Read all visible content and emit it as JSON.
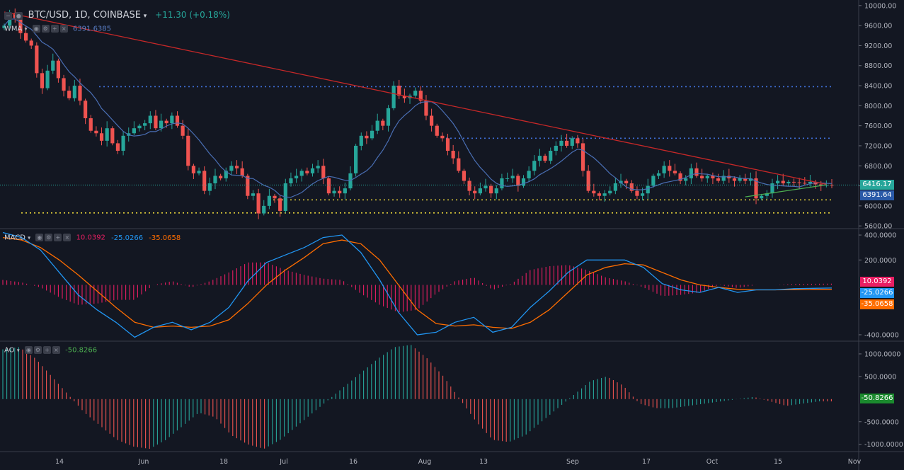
{
  "header": {
    "symbol": "BTC/USD, 1D, COINBASE",
    "change": "+11.30 (+0.18%)",
    "wma_label": "WMA",
    "wma_value": "6391.6385",
    "macd_label": "MACD",
    "macd_values": [
      "10.0392",
      "-25.0266",
      "-35.0658"
    ],
    "ao_label": "AO",
    "ao_value": "-50.8266"
  },
  "colors": {
    "background": "#131722",
    "up": "#26a69a",
    "down": "#ef5350",
    "ma": "#4a6fb5",
    "trend_down": "#c62828",
    "trend_up": "#4caf50",
    "blue_levels": "#3f6fd8",
    "yellow_levels": "#e6d23a",
    "macd_line": "#2196f3",
    "signal_line": "#ff6d00",
    "hist": "#e91e63",
    "ao_up": "#26a69a",
    "ao_down": "#ef5350"
  },
  "price_axis": {
    "ticks": [
      "10000.00",
      "9600.00",
      "9200.00",
      "8800.00",
      "8400.00",
      "8000.00",
      "7600.00",
      "7200.00",
      "6800.00",
      "6400.00",
      "6000.00",
      "5600.00"
    ],
    "ylim": [
      5560,
      10040
    ]
  },
  "macd_axis": {
    "ticks": [
      "400.0000",
      "200.0000",
      "-400.0000"
    ],
    "ylim": [
      -440,
      440
    ]
  },
  "ao_axis": {
    "ticks": [
      "1000.0000",
      "500.0000",
      "-500.0000",
      "-1000.0000"
    ],
    "ylim": [
      -1130,
      1250
    ]
  },
  "badges": {
    "price_current": "6416.17",
    "price_wma": "6391.64",
    "macd_hist": "10.0392",
    "macd_line": "-25.0266",
    "macd_signal": "-35.0658",
    "ao": "-50.8266"
  },
  "x_axis_labels": [
    "14",
    "Jun",
    "18",
    "Jul",
    "16",
    "Aug",
    "13",
    "Sep",
    "17",
    "Oct",
    "15",
    "Nov"
  ],
  "chart_data": [
    {
      "type": "candlestick",
      "title": "BTC/USD, 1D, COINBASE",
      "ylim": [
        5560,
        10040
      ],
      "close": [
        9600,
        9850,
        9750,
        9450,
        9300,
        9200,
        8650,
        8350,
        8700,
        8900,
        8550,
        8300,
        8150,
        8400,
        8100,
        7750,
        7500,
        7450,
        7300,
        7550,
        7250,
        7100,
        7400,
        7450,
        7550,
        7600,
        7650,
        7800,
        7550,
        7700,
        7650,
        7800,
        7600,
        7400,
        6800,
        6650,
        6700,
        6300,
        6450,
        6600,
        6550,
        6700,
        6800,
        6750,
        6600,
        6200,
        6250,
        5850,
        6000,
        6200,
        6150,
        5900,
        6450,
        6550,
        6600,
        6700,
        6650,
        6750,
        6800,
        6550,
        6250,
        6300,
        6250,
        6350,
        6650,
        7200,
        7400,
        7350,
        7500,
        7700,
        7600,
        7950,
        8400,
        8200,
        8150,
        8200,
        8300,
        8100,
        7800,
        7600,
        7400,
        7350,
        7100,
        6950,
        6700,
        6500,
        6300,
        6250,
        6350,
        6400,
        6250,
        6350,
        6550,
        6550,
        6600,
        6400,
        6550,
        6700,
        6900,
        7000,
        6900,
        7100,
        7200,
        7300,
        7200,
        7350,
        7250,
        6700,
        6300,
        6250,
        6200,
        6250,
        6300,
        6450,
        6500,
        6450,
        6300,
        6200,
        6250,
        6400,
        6600,
        6650,
        6800,
        6700,
        6650,
        6500,
        6550,
        6750,
        6600,
        6550,
        6600,
        6550,
        6500,
        6600,
        6550,
        6500,
        6550,
        6500,
        6550,
        6150,
        6200,
        6250,
        6450,
        6500,
        6450,
        6480,
        6470,
        6460,
        6450,
        6480,
        6430,
        6410,
        6420,
        6416
      ],
      "ma_current": 6391.6385,
      "levels": [
        8380,
        7350,
        6120,
        5860
      ],
      "trend_down": [
        [
          0,
          9870
        ],
        [
          152,
          6430
        ]
      ],
      "trend_up": [
        [
          137,
          6180
        ],
        [
          152,
          6420
        ]
      ]
    },
    {
      "type": "line",
      "title": "MACD",
      "ylim": [
        -440,
        440
      ],
      "series": [
        {
          "name": "MACD",
          "values": [
            420,
            380,
            280,
            100,
            -80,
            -200,
            -300,
            -420,
            -340,
            -300,
            -360,
            -300,
            -180,
            30,
            180,
            240,
            300,
            380,
            400,
            260,
            40,
            -220,
            -400,
            -380,
            -300,
            -260,
            -380,
            -340,
            -180,
            -50,
            100,
            200,
            200,
            200,
            140,
            10,
            -40,
            -60,
            -20,
            -60,
            -40,
            -40,
            -30,
            -27,
            -25
          ]
        },
        {
          "name": "Signal",
          "values": [
            380,
            360,
            300,
            200,
            80,
            -50,
            -180,
            -300,
            -340,
            -330,
            -340,
            -330,
            -280,
            -150,
            0,
            120,
            220,
            330,
            360,
            330,
            200,
            0,
            -200,
            -310,
            -330,
            -320,
            -340,
            -350,
            -300,
            -200,
            -60,
            80,
            140,
            170,
            160,
            100,
            40,
            0,
            -20,
            -35,
            -40,
            -40,
            -38,
            -36,
            -35
          ]
        }
      ],
      "histogram": [
        40,
        20,
        -20,
        -100,
        -160,
        -150,
        -120,
        -120,
        0,
        30,
        -20,
        30,
        100,
        180,
        180,
        120,
        80,
        50,
        40,
        -70,
        -160,
        -220,
        -200,
        -70,
        30,
        60,
        -40,
        10,
        120,
        150,
        160,
        120,
        60,
        30,
        -20,
        -90,
        -80,
        -60,
        0,
        -25,
        0,
        0,
        8,
        9,
        10
      ]
    },
    {
      "type": "bar",
      "title": "AO",
      "ylim": [
        -1130,
        1250
      ],
      "values": [
        1100,
        1150,
        900,
        500,
        100,
        -300,
        -600,
        -900,
        -1050,
        -1100,
        -900,
        -600,
        -300,
        -400,
        -800,
        -1000,
        -1100,
        -900,
        -600,
        -300,
        0,
        300,
        600,
        900,
        1150,
        1200,
        900,
        500,
        0,
        -500,
        -900,
        -950,
        -800,
        -500,
        -200,
        100,
        400,
        500,
        300,
        -100,
        -200,
        -200,
        -150,
        -100,
        -50,
        0,
        50,
        -50,
        -150,
        -100,
        -50,
        -51
      ]
    }
  ]
}
